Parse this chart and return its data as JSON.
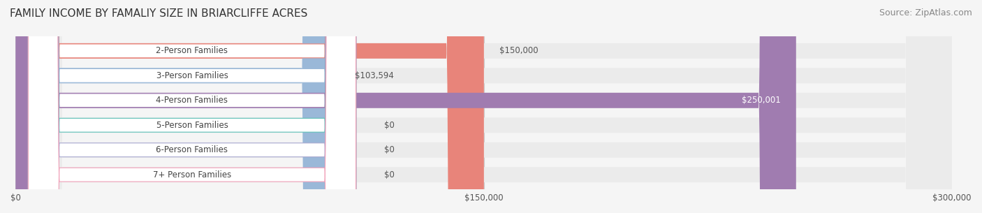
{
  "title": "FAMILY INCOME BY FAMALIY SIZE IN BRIARCLIFFE ACRES",
  "source": "Source: ZipAtlas.com",
  "categories": [
    "2-Person Families",
    "3-Person Families",
    "4-Person Families",
    "5-Person Families",
    "6-Person Families",
    "7+ Person Families"
  ],
  "values": [
    150000,
    103594,
    250001,
    0,
    0,
    0
  ],
  "bar_colors": [
    "#E8847A",
    "#9AB8D8",
    "#A07CB0",
    "#5BBFB5",
    "#A8A8D0",
    "#F0A0B8"
  ],
  "label_bg_colors": [
    "#E8847A",
    "#9AB8D8",
    "#A07CB0",
    "#5BBFB5",
    "#A8A8D0",
    "#F0A0B8"
  ],
  "value_labels": [
    "$150,000",
    "$103,594",
    "$250,001",
    "$0",
    "$0",
    "$0"
  ],
  "xlim": [
    0,
    300000
  ],
  "xticks": [
    0,
    150000,
    300000
  ],
  "xtick_labels": [
    "$0",
    "$150,000",
    "$300,000"
  ],
  "background_color": "#F5F5F5",
  "bar_bg_color": "#EBEBEB",
  "title_fontsize": 11,
  "source_fontsize": 9,
  "label_fontsize": 8.5,
  "value_fontsize": 8.5
}
